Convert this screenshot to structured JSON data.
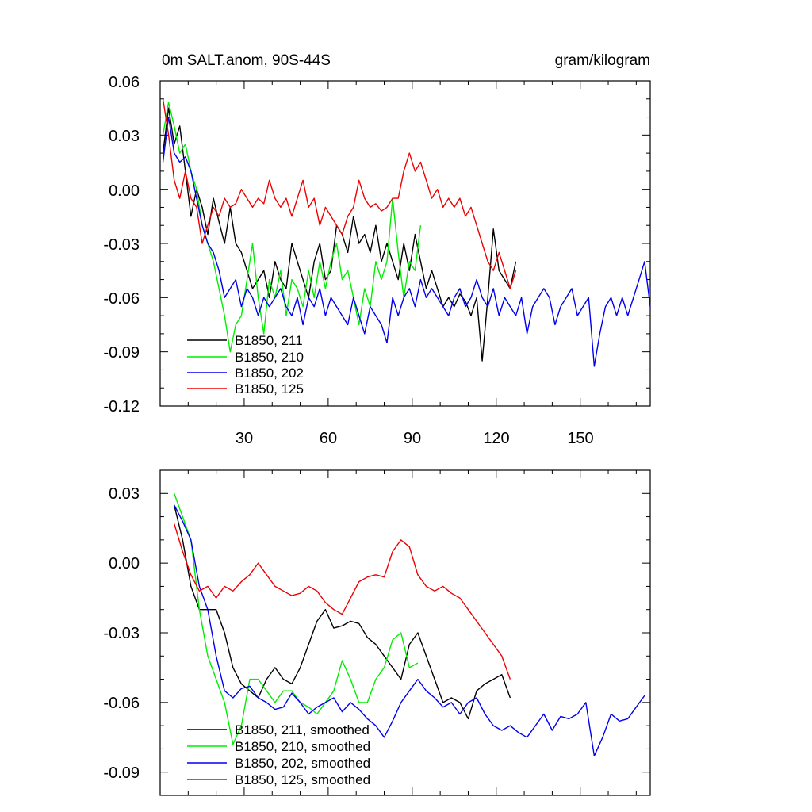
{
  "chart_data": [
    {
      "type": "line",
      "title": "0m SALT.anom, 90S-44S",
      "units": "gram/kilogram",
      "xlim": [
        0,
        175
      ],
      "ylim": [
        -0.12,
        0.06
      ],
      "xticks": [
        30,
        60,
        90,
        120,
        150
      ],
      "xtick_labels": [
        "30",
        "60",
        "90",
        "120",
        "150"
      ],
      "yticks": [
        0.06,
        0.03,
        0.0,
        -0.03,
        -0.06,
        -0.09,
        -0.12
      ],
      "ytick_labels": [
        "0.06",
        "0.03",
        "0.00",
        "-0.03",
        "-0.06",
        "-0.09",
        "-0.12"
      ],
      "legend_placement": "bottom-left",
      "series": [
        {
          "name": "B1850, 211",
          "color": "#000000",
          "x": [
            1,
            3,
            5,
            7,
            9,
            11,
            13,
            15,
            17,
            19,
            21,
            23,
            25,
            27,
            29,
            31,
            33,
            35,
            37,
            39,
            41,
            43,
            45,
            47,
            49,
            51,
            53,
            55,
            57,
            59,
            61,
            63,
            65,
            67,
            69,
            71,
            73,
            75,
            77,
            79,
            81,
            83,
            85,
            87,
            89,
            91,
            93,
            95,
            97,
            99,
            101,
            103,
            105,
            107,
            109,
            111,
            113,
            115,
            117,
            119,
            121,
            123,
            125,
            127
          ],
          "y": [
            0.02,
            0.045,
            0.025,
            0.035,
            0.01,
            -0.015,
            0.0,
            -0.01,
            -0.025,
            -0.005,
            -0.018,
            -0.03,
            -0.01,
            -0.03,
            -0.035,
            -0.045,
            -0.055,
            -0.05,
            -0.045,
            -0.06,
            -0.04,
            -0.05,
            -0.055,
            -0.03,
            -0.04,
            -0.05,
            -0.06,
            -0.04,
            -0.03,
            -0.05,
            -0.045,
            -0.02,
            -0.025,
            -0.035,
            -0.015,
            -0.03,
            -0.025,
            -0.035,
            -0.02,
            -0.04,
            -0.03,
            -0.04,
            -0.05,
            -0.03,
            -0.045,
            -0.025,
            -0.04,
            -0.055,
            -0.045,
            -0.055,
            -0.065,
            -0.06,
            -0.065,
            -0.058,
            -0.062,
            -0.07,
            -0.06,
            -0.095,
            -0.06,
            -0.022,
            -0.045,
            -0.05,
            -0.055,
            -0.04
          ]
        },
        {
          "name": "B1850, 210",
          "color": "#00ee00",
          "x": [
            1,
            3,
            5,
            7,
            9,
            11,
            13,
            15,
            17,
            19,
            21,
            23,
            25,
            27,
            29,
            31,
            33,
            35,
            37,
            39,
            41,
            43,
            45,
            47,
            49,
            51,
            53,
            55,
            57,
            59,
            61,
            63,
            65,
            67,
            69,
            71,
            73,
            75,
            77,
            79,
            81,
            83,
            85,
            87,
            89,
            91,
            93
          ],
          "y": [
            0.03,
            0.048,
            0.035,
            0.02,
            0.025,
            0.01,
            0.0,
            -0.02,
            -0.03,
            -0.04,
            -0.055,
            -0.07,
            -0.09,
            -0.075,
            -0.07,
            -0.05,
            -0.03,
            -0.06,
            -0.08,
            -0.05,
            -0.06,
            -0.045,
            -0.07,
            -0.05,
            -0.055,
            -0.065,
            -0.045,
            -0.06,
            -0.04,
            -0.055,
            -0.04,
            -0.03,
            -0.05,
            -0.045,
            -0.06,
            -0.075,
            -0.055,
            -0.065,
            -0.04,
            -0.05,
            -0.04,
            -0.005,
            -0.035,
            -0.06,
            -0.04,
            -0.045,
            -0.02
          ]
        },
        {
          "name": "B1850, 202",
          "color": "#0000ee",
          "x": [
            1,
            3,
            5,
            7,
            9,
            11,
            13,
            15,
            17,
            19,
            21,
            23,
            25,
            27,
            29,
            31,
            33,
            35,
            37,
            39,
            41,
            43,
            45,
            47,
            49,
            51,
            53,
            55,
            57,
            59,
            61,
            63,
            65,
            67,
            69,
            71,
            73,
            75,
            77,
            79,
            81,
            83,
            85,
            87,
            89,
            91,
            93,
            95,
            97,
            99,
            101,
            103,
            105,
            107,
            109,
            111,
            113,
            115,
            117,
            119,
            121,
            123,
            125,
            127,
            129,
            131,
            133,
            135,
            137,
            139,
            141,
            143,
            145,
            147,
            149,
            151,
            153,
            155,
            157,
            159,
            161,
            163,
            165,
            167,
            169,
            171,
            173,
            175
          ],
          "y": [
            0.015,
            0.04,
            0.02,
            0.015,
            0.018,
            0.01,
            -0.005,
            -0.02,
            -0.03,
            -0.035,
            -0.045,
            -0.06,
            -0.055,
            -0.05,
            -0.065,
            -0.055,
            -0.06,
            -0.07,
            -0.06,
            -0.065,
            -0.06,
            -0.055,
            -0.065,
            -0.07,
            -0.06,
            -0.075,
            -0.06,
            -0.065,
            -0.055,
            -0.07,
            -0.06,
            -0.065,
            -0.07,
            -0.075,
            -0.06,
            -0.07,
            -0.08,
            -0.065,
            -0.07,
            -0.075,
            -0.085,
            -0.06,
            -0.07,
            -0.06,
            -0.055,
            -0.065,
            -0.05,
            -0.06,
            -0.055,
            -0.06,
            -0.065,
            -0.07,
            -0.06,
            -0.055,
            -0.065,
            -0.06,
            -0.05,
            -0.06,
            -0.065,
            -0.055,
            -0.07,
            -0.06,
            -0.065,
            -0.07,
            -0.06,
            -0.08,
            -0.065,
            -0.06,
            -0.055,
            -0.06,
            -0.075,
            -0.065,
            -0.06,
            -0.055,
            -0.07,
            -0.065,
            -0.06,
            -0.098,
            -0.08,
            -0.065,
            -0.06,
            -0.07,
            -0.06,
            -0.07,
            -0.06,
            -0.05,
            -0.04,
            -0.065
          ]
        },
        {
          "name": "B1850, 125",
          "color": "#ee0000",
          "x": [
            1,
            3,
            5,
            7,
            9,
            11,
            13,
            15,
            17,
            19,
            21,
            23,
            25,
            27,
            29,
            31,
            33,
            35,
            37,
            39,
            41,
            43,
            45,
            47,
            49,
            51,
            53,
            55,
            57,
            59,
            61,
            63,
            65,
            67,
            69,
            71,
            73,
            75,
            77,
            79,
            81,
            83,
            85,
            87,
            89,
            91,
            93,
            95,
            97,
            99,
            101,
            103,
            105,
            107,
            109,
            111,
            113,
            115,
            117,
            119,
            121,
            123,
            125,
            127
          ],
          "y": [
            0.05,
            0.03,
            0.005,
            -0.005,
            0.01,
            -0.005,
            -0.01,
            -0.03,
            -0.02,
            -0.01,
            -0.015,
            -0.005,
            -0.01,
            -0.008,
            0.0,
            -0.005,
            -0.01,
            -0.005,
            -0.008,
            0.005,
            -0.005,
            -0.01,
            -0.005,
            -0.015,
            -0.005,
            0.005,
            -0.01,
            -0.005,
            -0.02,
            -0.01,
            -0.015,
            -0.02,
            -0.025,
            -0.015,
            -0.01,
            0.005,
            -0.005,
            -0.01,
            -0.008,
            -0.012,
            -0.01,
            -0.005,
            -0.005,
            0.01,
            0.02,
            0.01,
            0.015,
            0.005,
            -0.005,
            0.0,
            -0.01,
            -0.005,
            -0.01,
            -0.005,
            -0.015,
            -0.01,
            -0.02,
            -0.03,
            -0.04,
            -0.045,
            -0.035,
            -0.045,
            -0.055,
            -0.045
          ]
        }
      ]
    },
    {
      "type": "line",
      "title": "",
      "xlim": [
        0,
        175
      ],
      "ylim": [
        -0.1,
        0.04
      ],
      "xticks": [
        30,
        60,
        90,
        120,
        150
      ],
      "yticks": [
        0.03,
        0.0,
        -0.03,
        -0.06,
        -0.09
      ],
      "ytick_labels": [
        "0.03",
        "0.00",
        "-0.03",
        "-0.06",
        "-0.09"
      ],
      "legend_placement": "bottom-left",
      "series": [
        {
          "name": "B1850, 211, smoothed",
          "color": "#000000",
          "x": [
            5,
            8,
            11,
            14,
            17,
            20,
            23,
            26,
            29,
            32,
            35,
            38,
            41,
            44,
            47,
            50,
            53,
            56,
            59,
            62,
            65,
            68,
            71,
            74,
            77,
            80,
            83,
            86,
            89,
            92,
            95,
            98,
            101,
            104,
            107,
            110,
            113,
            116,
            119,
            122,
            125
          ],
          "y": [
            0.025,
            0.01,
            -0.01,
            -0.02,
            -0.02,
            -0.02,
            -0.03,
            -0.045,
            -0.052,
            -0.055,
            -0.058,
            -0.05,
            -0.045,
            -0.05,
            -0.052,
            -0.045,
            -0.035,
            -0.025,
            -0.02,
            -0.028,
            -0.027,
            -0.025,
            -0.026,
            -0.032,
            -0.035,
            -0.04,
            -0.045,
            -0.05,
            -0.035,
            -0.03,
            -0.04,
            -0.05,
            -0.06,
            -0.058,
            -0.06,
            -0.067,
            -0.055,
            -0.052,
            -0.05,
            -0.048,
            -0.058
          ]
        },
        {
          "name": "B1850, 210, smoothed",
          "color": "#00ee00",
          "x": [
            5,
            8,
            11,
            14,
            17,
            20,
            23,
            26,
            29,
            32,
            35,
            38,
            41,
            44,
            47,
            50,
            53,
            56,
            59,
            62,
            65,
            68,
            71,
            74,
            77,
            80,
            83,
            86,
            89,
            92
          ],
          "y": [
            0.03,
            0.02,
            0.01,
            -0.02,
            -0.04,
            -0.05,
            -0.06,
            -0.078,
            -0.07,
            -0.05,
            -0.05,
            -0.055,
            -0.06,
            -0.055,
            -0.055,
            -0.06,
            -0.062,
            -0.065,
            -0.06,
            -0.055,
            -0.042,
            -0.05,
            -0.06,
            -0.06,
            -0.05,
            -0.045,
            -0.033,
            -0.03,
            -0.045,
            -0.043
          ]
        },
        {
          "name": "B1850, 202, smoothed",
          "color": "#0000ee",
          "x": [
            5,
            8,
            11,
            14,
            17,
            20,
            23,
            26,
            29,
            32,
            35,
            38,
            41,
            44,
            47,
            50,
            53,
            56,
            59,
            62,
            65,
            68,
            71,
            74,
            77,
            80,
            83,
            86,
            89,
            92,
            95,
            98,
            101,
            104,
            107,
            110,
            113,
            116,
            119,
            122,
            125,
            128,
            131,
            134,
            137,
            140,
            143,
            146,
            149,
            152,
            155,
            158,
            161,
            164,
            167,
            170,
            173
          ],
          "y": [
            0.025,
            0.018,
            0.01,
            -0.01,
            -0.02,
            -0.04,
            -0.055,
            -0.058,
            -0.054,
            -0.053,
            -0.058,
            -0.06,
            -0.063,
            -0.062,
            -0.056,
            -0.06,
            -0.065,
            -0.062,
            -0.06,
            -0.058,
            -0.064,
            -0.06,
            -0.063,
            -0.067,
            -0.07,
            -0.075,
            -0.068,
            -0.06,
            -0.055,
            -0.05,
            -0.055,
            -0.058,
            -0.062,
            -0.06,
            -0.065,
            -0.06,
            -0.058,
            -0.065,
            -0.07,
            -0.072,
            -0.07,
            -0.073,
            -0.075,
            -0.07,
            -0.065,
            -0.072,
            -0.066,
            -0.067,
            -0.065,
            -0.06,
            -0.083,
            -0.075,
            -0.065,
            -0.068,
            -0.067,
            -0.062,
            -0.057
          ]
        },
        {
          "name": "B1850, 125, smoothed",
          "color": "#ee0000",
          "x": [
            5,
            8,
            11,
            14,
            17,
            20,
            23,
            26,
            29,
            32,
            35,
            38,
            41,
            44,
            47,
            50,
            53,
            56,
            59,
            62,
            65,
            68,
            71,
            74,
            77,
            80,
            83,
            86,
            89,
            92,
            95,
            98,
            101,
            104,
            107,
            110,
            113,
            116,
            119,
            122,
            125
          ],
          "y": [
            0.017,
            0.005,
            -0.005,
            -0.012,
            -0.01,
            -0.015,
            -0.01,
            -0.012,
            -0.008,
            -0.005,
            0.0,
            -0.005,
            -0.01,
            -0.012,
            -0.014,
            -0.013,
            -0.01,
            -0.012,
            -0.017,
            -0.02,
            -0.022,
            -0.015,
            -0.008,
            -0.006,
            -0.005,
            -0.006,
            0.005,
            0.01,
            0.007,
            -0.005,
            -0.01,
            -0.012,
            -0.01,
            -0.013,
            -0.015,
            -0.02,
            -0.025,
            -0.03,
            -0.035,
            -0.04,
            -0.05
          ]
        }
      ]
    }
  ]
}
